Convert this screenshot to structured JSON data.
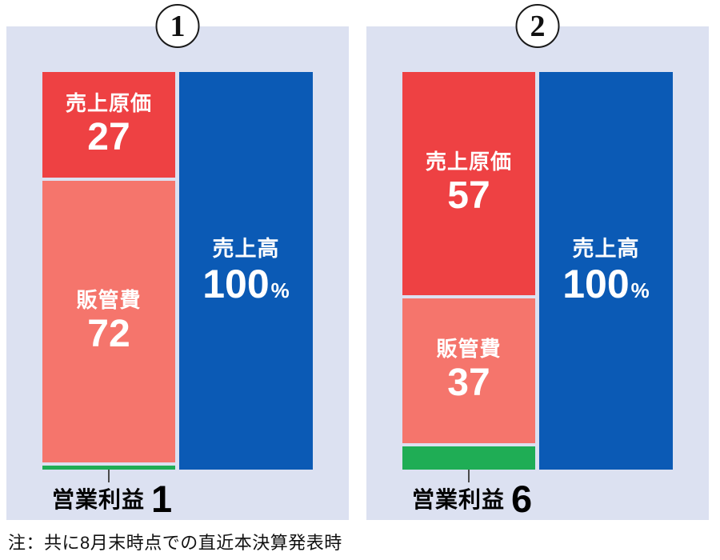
{
  "note": "注：共に8月末時点での直近本決算発表時",
  "colors": {
    "panel_bg": "#dce1f1",
    "cogs": "#ee4143",
    "sga": "#f5756c",
    "profit": "#1fad55",
    "revenue": "#0b5ab5",
    "connector": "#4a4a4a"
  },
  "chart_data": [
    {
      "type": "bar",
      "variant": "stacked-cost-structure",
      "panel_number": "1",
      "unit_note": "percent of revenue",
      "categories": [
        "売上原価",
        "販管費",
        "営業利益"
      ],
      "stack": [
        {
          "name": "cogs",
          "label": "売上原価",
          "value": 27,
          "color_key": "cogs",
          "show_label": true
        },
        {
          "name": "sga",
          "label": "販管費",
          "value": 72,
          "color_key": "sga",
          "show_label": true
        },
        {
          "name": "profit",
          "label": "営業利益",
          "value": 1,
          "color_key": "profit",
          "show_label": false
        }
      ],
      "revenue": {
        "label": "売上高",
        "value": "100",
        "unit": "%"
      },
      "profit_callout": {
        "label": "営業利益",
        "value": "1"
      }
    },
    {
      "type": "bar",
      "variant": "stacked-cost-structure",
      "panel_number": "2",
      "unit_note": "percent of revenue",
      "categories": [
        "売上原価",
        "販管費",
        "営業利益"
      ],
      "stack": [
        {
          "name": "cogs",
          "label": "売上原価",
          "value": 57,
          "color_key": "cogs",
          "show_label": true
        },
        {
          "name": "sga",
          "label": "販管費",
          "value": 37,
          "color_key": "sga",
          "show_label": true
        },
        {
          "name": "profit",
          "label": "営業利益",
          "value": 6,
          "color_key": "profit",
          "show_label": false
        }
      ],
      "revenue": {
        "label": "売上高",
        "value": "100",
        "unit": "%"
      },
      "profit_callout": {
        "label": "営業利益",
        "value": "6"
      }
    }
  ]
}
